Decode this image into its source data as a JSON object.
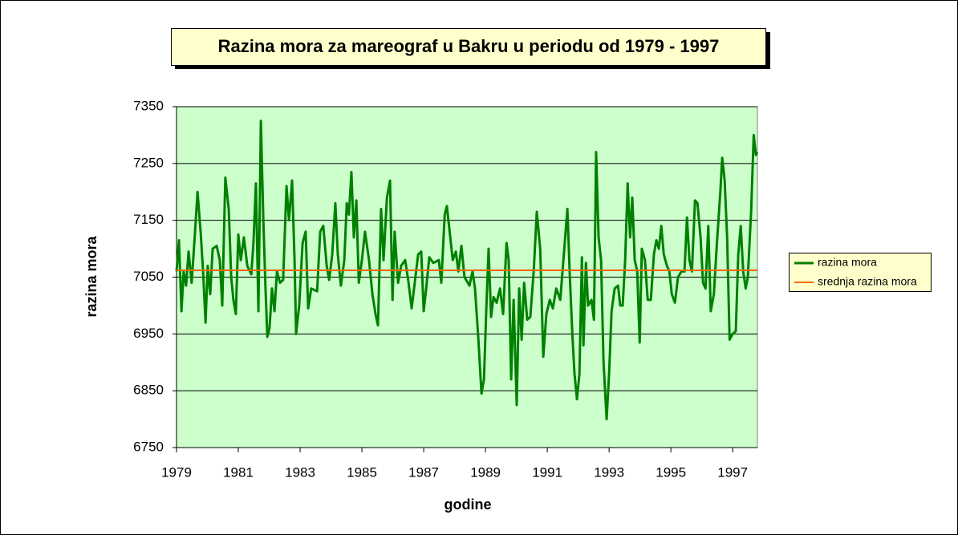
{
  "chart_data": {
    "type": "line",
    "title": "Razina mora za mareograf u Bakru u periodu od 1979 - 1997",
    "xlabel": "godine",
    "ylabel": "razina mora",
    "xlim": [
      1979,
      1997.8
    ],
    "xticks": [
      1979,
      1981,
      1983,
      1985,
      1987,
      1989,
      1991,
      1993,
      1995,
      1997
    ],
    "ylim": [
      6750,
      7350
    ],
    "yticks": [
      6750,
      6850,
      6950,
      7050,
      7150,
      7250,
      7350
    ],
    "grid": true,
    "legend": "right",
    "series": [
      {
        "name": "razina mora",
        "color": "#008000",
        "x": [
          1979.0,
          1979.08,
          1979.16,
          1979.23,
          1979.31,
          1979.39,
          1979.49,
          1979.6,
          1979.68,
          1979.78,
          1979.86,
          1979.94,
          1980.01,
          1980.09,
          1980.17,
          1980.3,
          1980.4,
          1980.48,
          1980.58,
          1980.69,
          1980.77,
          1980.84,
          1980.92,
          1981.0,
          1981.08,
          1981.18,
          1981.29,
          1981.42,
          1981.49,
          1981.57,
          1981.65,
          1981.73,
          1981.81,
          1981.88,
          1981.94,
          1982.01,
          1982.09,
          1982.17,
          1982.25,
          1982.35,
          1982.45,
          1982.56,
          1982.64,
          1982.74,
          1982.82,
          1982.87,
          1982.97,
          1983.08,
          1983.18,
          1983.26,
          1983.36,
          1983.55,
          1983.65,
          1983.75,
          1983.86,
          1983.94,
          1984.04,
          1984.14,
          1984.22,
          1984.32,
          1984.43,
          1984.51,
          1984.58,
          1984.66,
          1984.74,
          1984.82,
          1984.9,
          1985.0,
          1985.1,
          1985.23,
          1985.34,
          1985.44,
          1985.52,
          1985.62,
          1985.7,
          1985.81,
          1985.91,
          1985.99,
          1986.06,
          1986.17,
          1986.27,
          1986.4,
          1986.51,
          1986.61,
          1986.71,
          1986.82,
          1986.92,
          1987.0,
          1987.08,
          1987.18,
          1987.31,
          1987.49,
          1987.57,
          1987.68,
          1987.75,
          1987.86,
          1987.94,
          1988.04,
          1988.12,
          1988.22,
          1988.32,
          1988.48,
          1988.58,
          1988.66,
          1988.77,
          1988.87,
          1988.95,
          1989.03,
          1989.1,
          1989.18,
          1989.26,
          1989.36,
          1989.47,
          1989.57,
          1989.68,
          1989.75,
          1989.83,
          1989.91,
          1990.01,
          1990.09,
          1990.17,
          1990.25,
          1990.35,
          1990.45,
          1990.56,
          1990.66,
          1990.77,
          1990.87,
          1990.97,
          1991.08,
          1991.18,
          1991.29,
          1991.42,
          1991.55,
          1991.65,
          1991.73,
          1991.81,
          1991.88,
          1991.96,
          1992.04,
          1992.12,
          1992.17,
          1992.25,
          1992.32,
          1992.43,
          1992.51,
          1992.58,
          1992.66,
          1992.74,
          1992.82,
          1992.92,
          1993.0,
          1993.08,
          1993.18,
          1993.29,
          1993.36,
          1993.44,
          1993.52,
          1993.6,
          1993.68,
          1993.75,
          1993.83,
          1993.91,
          1993.99,
          1994.06,
          1994.16,
          1994.25,
          1994.35,
          1994.45,
          1994.53,
          1994.61,
          1994.69,
          1994.77,
          1994.87,
          1994.95,
          1995.03,
          1995.13,
          1995.23,
          1995.34,
          1995.44,
          1995.52,
          1995.6,
          1995.68,
          1995.78,
          1995.86,
          1995.96,
          1996.04,
          1996.12,
          1996.21,
          1996.29,
          1996.39,
          1996.49,
          1996.6,
          1996.66,
          1996.74,
          1996.82,
          1996.9,
          1997.0,
          1997.1,
          1997.18,
          1997.26,
          1997.34,
          1997.42,
          1997.49,
          1997.6,
          1997.68,
          1997.75,
          1997.8
        ],
        "values": [
          7060,
          7115,
          6990,
          7060,
          7035,
          7095,
          7040,
          7130,
          7200,
          7130,
          7060,
          6970,
          7070,
          7020,
          7100,
          7105,
          7080,
          7000,
          7225,
          7170,
          7050,
          7010,
          6985,
          7125,
          7080,
          7120,
          7070,
          7055,
          7110,
          7215,
          6990,
          7325,
          7150,
          7030,
          6945,
          6960,
          7030,
          6990,
          7060,
          7040,
          7045,
          7210,
          7150,
          7220,
          7080,
          6950,
          7000,
          7110,
          7130,
          6995,
          7030,
          7025,
          7130,
          7140,
          7070,
          7045,
          7090,
          7180,
          7090,
          7035,
          7080,
          7180,
          7160,
          7235,
          7120,
          7185,
          7040,
          7080,
          7130,
          7080,
          7020,
          6985,
          6965,
          7170,
          7080,
          7190,
          7220,
          7010,
          7130,
          7040,
          7070,
          7080,
          7040,
          6995,
          7040,
          7090,
          7095,
          6990,
          7030,
          7085,
          7075,
          7080,
          7040,
          7160,
          7175,
          7120,
          7080,
          7095,
          7060,
          7105,
          7050,
          7035,
          7060,
          7030,
          6940,
          6845,
          6870,
          7000,
          7100,
          6980,
          7015,
          7005,
          7030,
          6985,
          7110,
          7080,
          6870,
          7010,
          6825,
          7030,
          6940,
          7040,
          6975,
          6980,
          7060,
          7165,
          7100,
          6910,
          6985,
          7010,
          6995,
          7030,
          7010,
          7100,
          7170,
          7050,
          6950,
          6880,
          6835,
          6880,
          7085,
          6930,
          7075,
          7000,
          7010,
          6975,
          7270,
          7120,
          7080,
          6900,
          6800,
          6880,
          6990,
          7030,
          7035,
          7000,
          7000,
          7080,
          7215,
          7120,
          7190,
          7080,
          7060,
          6935,
          7100,
          7080,
          7010,
          7010,
          7090,
          7115,
          7100,
          7140,
          7090,
          7070,
          7060,
          7020,
          7005,
          7050,
          7060,
          7060,
          7155,
          7080,
          7060,
          7185,
          7180,
          7120,
          7040,
          7030,
          7140,
          6990,
          7020,
          7110,
          7200,
          7260,
          7220,
          7120,
          6940,
          6950,
          6955,
          7090,
          7140,
          7060,
          7030,
          7050,
          7170,
          7300,
          7265,
          7270
        ]
      },
      {
        "name": "srednja razina mora",
        "color": "#ff6600",
        "x": [
          1979.0,
          1997.8
        ],
        "values": [
          7062,
          7062
        ]
      }
    ]
  }
}
